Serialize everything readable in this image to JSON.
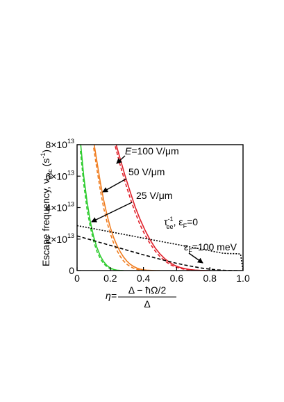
{
  "chart_data": {
    "type": "line",
    "ylabel": {
      "main": "Escape frequency, ν",
      "sub": "esc",
      "unit": " (s",
      "unit_sup": "-1",
      "unit_end": ")"
    },
    "xlabel": {
      "prefix": "η=",
      "numerator": "Δ − ħΩ/2",
      "denominator": "Δ"
    },
    "xlim": [
      0,
      1.0
    ],
    "ylim": [
      0,
      80000000000000.0
    ],
    "x_ticks": [
      {
        "v": 0,
        "label": "0"
      },
      {
        "v": 0.2,
        "label": "0.2"
      },
      {
        "v": 0.4,
        "label": "0.4"
      },
      {
        "v": 0.6,
        "label": "0.6"
      },
      {
        "v": 0.8,
        "label": "0.8"
      },
      {
        "v": 1.0,
        "label": "1.0"
      }
    ],
    "y_ticks": [
      {
        "v": 0,
        "label": "0",
        "mant": "",
        "exp": ""
      },
      {
        "v": 20000000000000.0,
        "label": "",
        "mant": "2×10",
        "exp": "13"
      },
      {
        "v": 40000000000000.0,
        "label": "",
        "mant": "4×10",
        "exp": "13"
      },
      {
        "v": 60000000000000.0,
        "label": "",
        "mant": "6×10",
        "exp": "13"
      },
      {
        "v": 80000000000000.0,
        "label": "",
        "mant": "8×10",
        "exp": "13"
      }
    ],
    "series": [
      {
        "color": "#2ecc2e",
        "style": "solid",
        "x": [
          0.02,
          0.04,
          0.06,
          0.08,
          0.1,
          0.12,
          0.14,
          0.16,
          0.18,
          0.2,
          0.22,
          0.24,
          0.26,
          0.28
        ],
        "y": [
          82000000000000.0,
          60000000000000.0,
          44000000000000.0,
          31000000000000.0,
          21500000000000.0,
          14500000000000.0,
          9300000000000.0,
          5700000000000.0,
          3200000000000.0,
          1600000000000.0,
          700000000000.0,
          250000000000.0,
          80000000000.0,
          0
        ]
      },
      {
        "color": "#2ecc2e",
        "style": "dashed",
        "x": [
          0.02,
          0.04,
          0.06,
          0.08,
          0.1,
          0.12,
          0.14,
          0.16,
          0.18,
          0.2,
          0.22,
          0.24,
          0.26
        ],
        "y": [
          76000000000000.0,
          55000000000000.0,
          39000000000000.0,
          27500000000000.0,
          18500000000000.0,
          12000000000000.0,
          7500000000000.0,
          4400000000000.0,
          2400000000000.0,
          1100000000000.0,
          400000000000.0,
          100000000000.0,
          0
        ]
      },
      {
        "color": "#f07c1e",
        "style": "solid",
        "x": [
          0.1,
          0.12,
          0.14,
          0.16,
          0.18,
          0.2,
          0.22,
          0.24,
          0.26,
          0.28,
          0.3,
          0.32,
          0.34,
          0.36,
          0.38,
          0.4,
          0.42,
          0.44,
          0.46,
          0.48,
          0.5
        ],
        "y": [
          82000000000000.0,
          69000000000000.0,
          56000000000000.0,
          45000000000000.0,
          35500000000000.0,
          27500000000000.0,
          21000000000000.0,
          16000000000000.0,
          12000000000000.0,
          8600000000000.0,
          6000000000000.0,
          4000000000000.0,
          2600000000000.0,
          1600000000000.0,
          900000000000.0,
          500000000000.0,
          250000000000.0,
          120000000000.0,
          50000000000.0,
          20000000000.0,
          0
        ]
      },
      {
        "color": "#f07c1e",
        "style": "dashed",
        "x": [
          0.1,
          0.12,
          0.14,
          0.16,
          0.18,
          0.2,
          0.22,
          0.24,
          0.26,
          0.28,
          0.3,
          0.32,
          0.34,
          0.36,
          0.38,
          0.4,
          0.42,
          0.44,
          0.46
        ],
        "y": [
          78000000000000.0,
          64000000000000.0,
          51000000000000.0,
          40000000000000.0,
          31000000000000.0,
          23500000000000.0,
          17500000000000.0,
          12800000000000.0,
          9000000000000.0,
          6100000000000.0,
          4000000000000.0,
          2500000000000.0,
          1500000000000.0,
          800000000000.0,
          400000000000.0,
          200000000000.0,
          80000000000.0,
          30000000000.0,
          0
        ]
      },
      {
        "color": "#e0202a",
        "style": "solid",
        "x": [
          0.23,
          0.26,
          0.29,
          0.32,
          0.35,
          0.38,
          0.41,
          0.44,
          0.47,
          0.5,
          0.53,
          0.56,
          0.59,
          0.62,
          0.65,
          0.68,
          0.71,
          0.74,
          0.77,
          0.8
        ],
        "y": [
          82000000000000.0,
          71000000000000.0,
          60000000000000.0,
          50000000000000.0,
          40500000000000.0,
          32500000000000.0,
          25500000000000.0,
          19500000000000.0,
          14500000000000.0,
          10500000000000.0,
          7400000000000.0,
          5000000000000.0,
          3200000000000.0,
          2000000000000.0,
          1200000000000.0,
          650000000000.0,
          320000000000.0,
          140000000000.0,
          50000000000.0,
          0
        ]
      },
      {
        "color": "#e0202a",
        "style": "dashed",
        "x": [
          0.23,
          0.26,
          0.29,
          0.32,
          0.35,
          0.38,
          0.41,
          0.44,
          0.47,
          0.5,
          0.53,
          0.56,
          0.59,
          0.62,
          0.65,
          0.68,
          0.71,
          0.74,
          0.77
        ],
        "y": [
          79000000000000.0,
          67000000000000.0,
          56000000000000.0,
          46000000000000.0,
          37000000000000.0,
          29000000000000.0,
          22500000000000.0,
          17000000000000.0,
          12500000000000.0,
          8800000000000.0,
          6000000000000.0,
          3900000000000.0,
          2400000000000.0,
          1400000000000.0,
          750000000000.0,
          360000000000.0,
          150000000000.0,
          50000000000.0,
          0
        ]
      },
      {
        "color": "#000000",
        "style": "dotted",
        "x": [
          0.0,
          0.05,
          0.1,
          0.15,
          0.2,
          0.25,
          0.3,
          0.35,
          0.4,
          0.45,
          0.5,
          0.55,
          0.6,
          0.65,
          0.7,
          0.75,
          0.8,
          0.85,
          0.88,
          0.92,
          0.96,
          0.985,
          1.0
        ],
        "y": [
          28500000000000.0,
          27600000000000.0,
          26600000000000.0,
          25600000000000.0,
          24600000000000.0,
          23600000000000.0,
          22600000000000.0,
          21600000000000.0,
          20600000000000.0,
          19600000000000.0,
          18600000000000.0,
          17600000000000.0,
          16600000000000.0,
          15600000000000.0,
          14600000000000.0,
          13600000000000.0,
          12600000000000.0,
          11600000000000.0,
          11000000000000.0,
          10800000000000.0,
          10700000000000.0,
          10500000000000.0,
          0
        ]
      },
      {
        "color": "#000000",
        "style": "dashed",
        "x": [
          0.0,
          0.05,
          0.1,
          0.15,
          0.2,
          0.25,
          0.3,
          0.35,
          0.4,
          0.45,
          0.5,
          0.55,
          0.6,
          0.65,
          0.7,
          0.75,
          0.8,
          0.85,
          0.9,
          0.95,
          0.98
        ],
        "y": [
          22000000000000.0,
          20500000000000.0,
          19000000000000.0,
          17500000000000.0,
          16000000000000.0,
          14500000000000.0,
          13000000000000.0,
          11500000000000.0,
          10000000000000.0,
          8600000000000.0,
          7200000000000.0,
          5900000000000.0,
          4600000000000.0,
          3500000000000.0,
          2500000000000.0,
          1600000000000.0,
          900000000000.0,
          400000000000.0,
          100000000000.0,
          10000000000.0,
          0
        ]
      }
    ],
    "annotations": {
      "e100": {
        "prefix": "E",
        "rest": "=100 V/μm"
      },
      "e50": "50 V/μm",
      "e25": "25 V/μm",
      "tau": {
        "tau": "τ",
        "sup": "-1",
        "sub": "ee",
        "sep": ", ε",
        "sub2": "F",
        "rest": "=0"
      },
      "ef": {
        "eps": "ε",
        "sub": "F",
        "rest": "=100 meV"
      }
    }
  }
}
